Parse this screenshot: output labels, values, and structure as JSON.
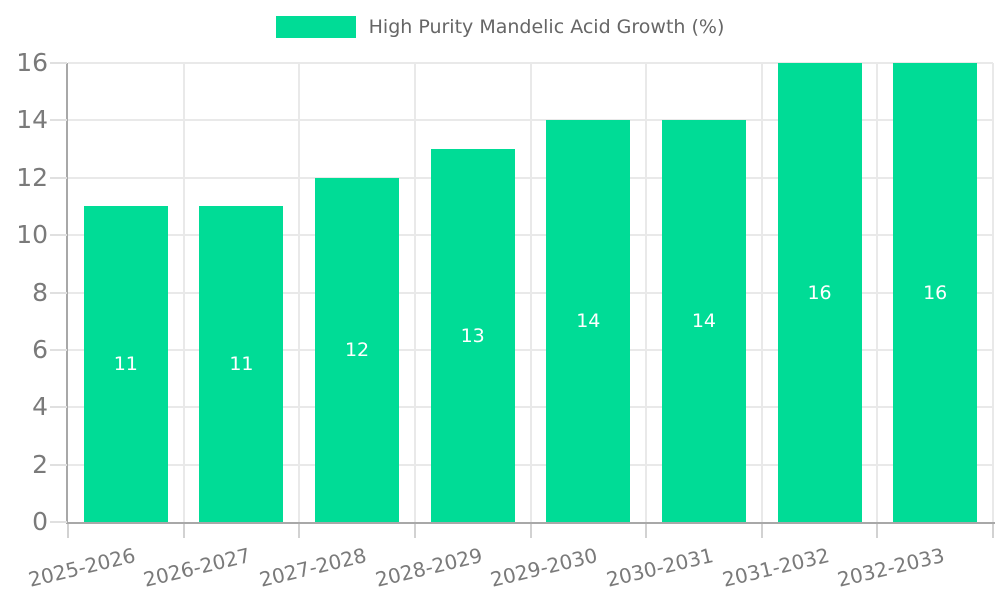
{
  "legend": {
    "label": "High Purity Mandelic Acid Growth (%)"
  },
  "chart_data": {
    "type": "bar",
    "title": "High Purity Mandelic Acid Growth (%)",
    "categories": [
      "2025-2026",
      "2026-2027",
      "2027-2028",
      "2028-2029",
      "2029-2030",
      "2030-2031",
      "2031-2032",
      "2032-2033"
    ],
    "values": [
      11,
      11,
      12,
      13,
      14,
      14,
      16,
      16
    ],
    "value_labels": [
      "11",
      "11",
      "12",
      "13",
      "14",
      "14",
      "16",
      "16"
    ],
    "xlabel": "",
    "ylabel": "",
    "ylim": [
      0,
      16
    ],
    "yticks": [
      0,
      2,
      4,
      6,
      8,
      10,
      12,
      14,
      16
    ],
    "grid": true,
    "legend_position": "top",
    "x_tick_rotation_deg": -13.5
  },
  "colors": {
    "bar": "#00dc96",
    "value_label": "#ffffff",
    "gridline": "#e9e9e9",
    "axis_line": "#a8a8a8",
    "tick_label": "#7a7a7a",
    "legend_text": "#666666",
    "background": "#ffffff"
  }
}
